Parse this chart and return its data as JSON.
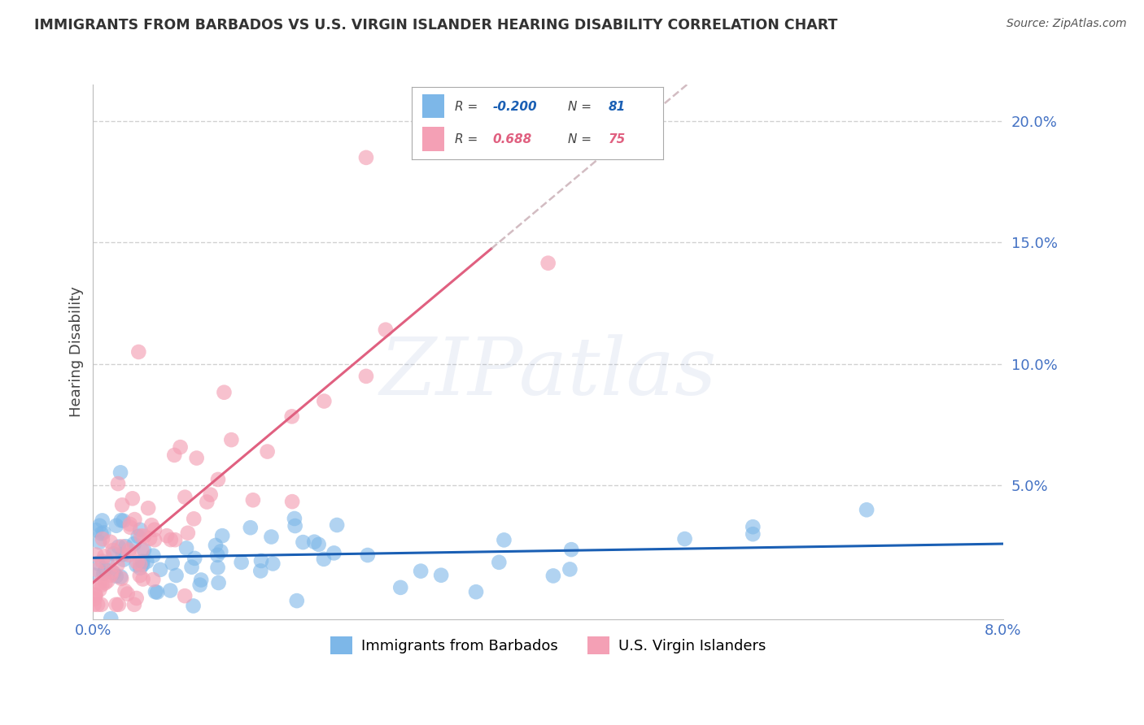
{
  "title": "IMMIGRANTS FROM BARBADOS VS U.S. VIRGIN ISLANDER HEARING DISABILITY CORRELATION CHART",
  "source": "Source: ZipAtlas.com",
  "xlabel": "",
  "ylabel": "Hearing Disability",
  "watermark": "ZIPatlas",
  "legend_blue_label": "Immigrants from Barbados",
  "legend_pink_label": "U.S. Virgin Islanders",
  "R_blue": -0.2,
  "N_blue": 81,
  "R_pink": 0.688,
  "N_pink": 75,
  "xlim": [
    0.0,
    0.08
  ],
  "ylim": [
    -0.005,
    0.215
  ],
  "yticks": [
    0.05,
    0.1,
    0.15,
    0.2
  ],
  "xticks": [
    0.0,
    0.08
  ],
  "blue_color": "#7db7e8",
  "pink_color": "#f4a0b5",
  "blue_line_color": "#1a5fb4",
  "pink_line_color": "#e06080",
  "pink_dash_color": "#d0a0b0",
  "grid_color": "#cccccc",
  "title_color": "#333333",
  "axis_label_color": "#4472c4",
  "background_color": "#ffffff"
}
